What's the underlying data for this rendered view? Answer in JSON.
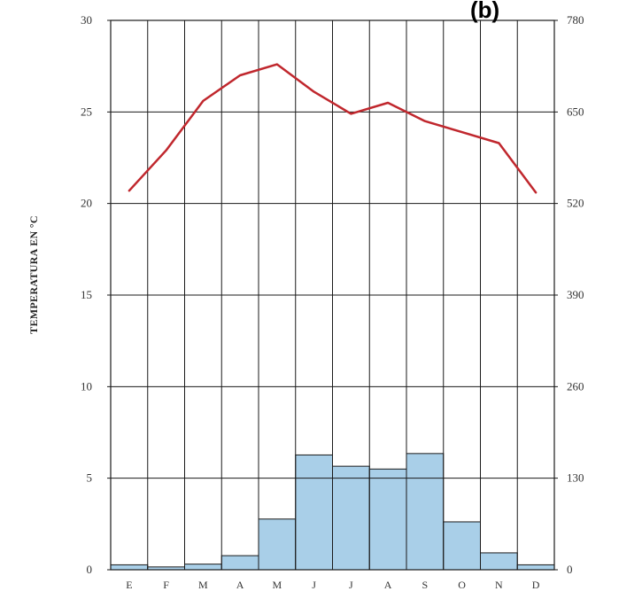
{
  "chart_data": {
    "type": "climograph",
    "tag": "(b)",
    "ylabel": "TEMPERATURA EN °C",
    "categories": [
      "E",
      "F",
      "M",
      "A",
      "M",
      "J",
      "J",
      "A",
      "S",
      "O",
      "N",
      "D"
    ],
    "left_axis": {
      "ylim": [
        0,
        30
      ],
      "ticks": [
        "0",
        "5",
        "10",
        "15",
        "20",
        "25",
        "30"
      ]
    },
    "right_axis": {
      "ylim": [
        0,
        780
      ],
      "ticks": [
        "0",
        "130",
        "260",
        "390",
        "520",
        "650",
        "780"
      ]
    },
    "grid": true,
    "series": [
      {
        "kind": "line",
        "axis": "left",
        "color": "#c0272d",
        "values": [
          20.7,
          22.9,
          25.6,
          27.0,
          27.6,
          26.1,
          24.9,
          25.5,
          24.5,
          23.9,
          23.3,
          20.6
        ]
      },
      {
        "kind": "bar",
        "axis": "right",
        "color": "#a9cfe8",
        "values": [
          7,
          4,
          8,
          20,
          72,
          163,
          147,
          143,
          165,
          68,
          24,
          7
        ]
      }
    ]
  }
}
